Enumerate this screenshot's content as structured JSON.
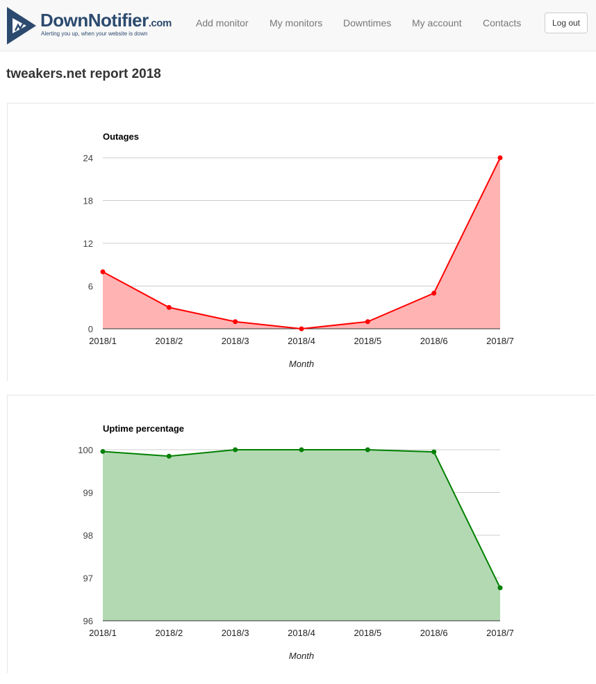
{
  "nav": {
    "brand": "DownNotifier",
    "brand_suffix": ".com",
    "tagline": "Alerting you up, when your website is down",
    "links": [
      "Add monitor",
      "My monitors",
      "Downtimes",
      "My account",
      "Contacts"
    ],
    "logout": "Log out"
  },
  "page": {
    "title": "tweakers.net report 2018"
  },
  "chart_data": [
    {
      "type": "area",
      "title": "Outages",
      "xlabel": "Month",
      "ylabel": "",
      "categories": [
        "2018/1",
        "2018/2",
        "2018/3",
        "2018/4",
        "2018/5",
        "2018/6",
        "2018/7"
      ],
      "values": [
        8,
        3,
        1,
        0,
        1,
        5,
        24
      ],
      "ylim": [
        0,
        24
      ],
      "yticks": [
        0,
        6,
        12,
        18,
        24
      ],
      "grid": true,
      "color": "#ff0000",
      "fill": "#ffb3b3"
    },
    {
      "type": "area",
      "title": "Uptime percentage",
      "xlabel": "Month",
      "ylabel": "",
      "categories": [
        "2018/1",
        "2018/2",
        "2018/3",
        "2018/4",
        "2018/5",
        "2018/6",
        "2018/7"
      ],
      "values": [
        99.96,
        99.85,
        100,
        100,
        100,
        99.95,
        96.77
      ],
      "ylim": [
        96,
        100
      ],
      "yticks": [
        96,
        97,
        98,
        99,
        100
      ],
      "grid": true,
      "color": "#008000",
      "fill": "#b3d9b3"
    }
  ]
}
